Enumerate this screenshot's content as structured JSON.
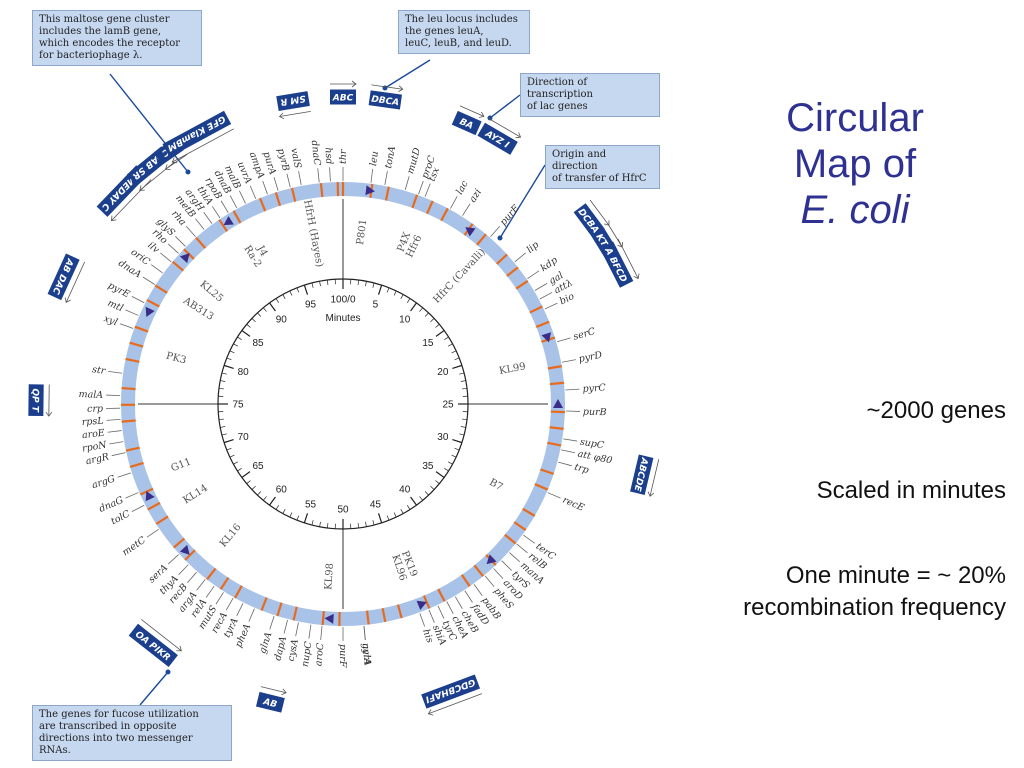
{
  "slide": {
    "title_line1": "Circular",
    "title_line2": "Map of",
    "title_line3": "E. coli",
    "stat_genes": "~2000 genes",
    "stat_scale": "Scaled in minutes",
    "stat_minute_line1": "One minute = ~ 20%",
    "stat_minute_line2": "recombination frequency"
  },
  "diagram": {
    "center_label": "Minutes",
    "minute_ticks": [
      "100/0",
      "5",
      "10",
      "15",
      "20",
      "25",
      "30",
      "35",
      "40",
      "45",
      "50",
      "55",
      "60",
      "65",
      "70",
      "75",
      "80",
      "85",
      "90",
      "95"
    ],
    "strains": [
      {
        "name": "HfrH (Hayes)",
        "min": 97
      },
      {
        "name": "P801",
        "min": 2
      },
      {
        "name": "P4X",
        "min": 6
      },
      {
        "name": "Hfr6",
        "min": 7
      },
      {
        "name": "HfrC (Cavalli)",
        "min": 12
      },
      {
        "name": "KL99",
        "min": 22
      },
      {
        "name": "B7",
        "min": 33
      },
      {
        "name": "PK19",
        "min": 44
      },
      {
        "name": "KL96",
        "min": 45
      },
      {
        "name": "KL98",
        "min": 51
      },
      {
        "name": "KL16",
        "min": 61
      },
      {
        "name": "KL14",
        "min": 66
      },
      {
        "name": "G11",
        "min": 69
      },
      {
        "name": "PK3",
        "min": 79
      },
      {
        "name": "AB313",
        "min": 84
      },
      {
        "name": "KL25",
        "min": 86
      },
      {
        "name": "Ra-2",
        "min": 91
      },
      {
        "name": "J4",
        "min": 92
      }
    ],
    "genes": [
      {
        "name": "thr",
        "min": 0
      },
      {
        "name": "leu",
        "min": 2
      },
      {
        "name": "tonA",
        "min": 3
      },
      {
        "name": "mutD",
        "min": 4.5
      },
      {
        "name": "proC",
        "min": 5.5
      },
      {
        "name": "tsx",
        "min": 6
      },
      {
        "name": "lac",
        "min": 8
      },
      {
        "name": "azi",
        "min": 9
      },
      {
        "name": "purE",
        "min": 11.5
      },
      {
        "name": "lip",
        "min": 14
      },
      {
        "name": "kdp",
        "min": 15.5
      },
      {
        "name": "gal",
        "min": 16.5
      },
      {
        "name": "attλ",
        "min": 17.2
      },
      {
        "name": "bio",
        "min": 18
      },
      {
        "name": "serC",
        "min": 20.5
      },
      {
        "name": "pyrD",
        "min": 22
      },
      {
        "name": "pyrC",
        "min": 24
      },
      {
        "name": "purB",
        "min": 25.5
      },
      {
        "name": "supC",
        "min": 27.5
      },
      {
        "name": "att φ80",
        "min": 28.3
      },
      {
        "name": "trp",
        "min": 29.2
      },
      {
        "name": "recE",
        "min": 31.5
      },
      {
        "name": "terC",
        "min": 35
      },
      {
        "name": "relB",
        "min": 35.8
      },
      {
        "name": "manA",
        "min": 36.6
      },
      {
        "name": "tyrS",
        "min": 37.4
      },
      {
        "name": "aroD",
        "min": 38.2
      },
      {
        "name": "pheS",
        "min": 39
      },
      {
        "name": "pabB",
        "min": 40
      },
      {
        "name": "fadD",
        "min": 40.8
      },
      {
        "name": "cheB",
        "min": 41.6
      },
      {
        "name": "cheA",
        "min": 42.3
      },
      {
        "name": "tyrC",
        "min": 43
      },
      {
        "name": "shiA",
        "min": 43.7
      },
      {
        "name": "his",
        "min": 44.4
      },
      {
        "name": "nalA",
        "min": 48.5
      },
      {
        "name": "gyrA",
        "min": 48.5
      },
      {
        "name": "purF",
        "min": 50
      },
      {
        "name": "aroC",
        "min": 51.5
      },
      {
        "name": "nupC",
        "min": 52.3
      },
      {
        "name": "cysA",
        "min": 53.2
      },
      {
        "name": "dapA",
        "min": 54
      },
      {
        "name": "glnA",
        "min": 55
      },
      {
        "name": "pheA",
        "min": 56.5
      },
      {
        "name": "tyrA",
        "min": 57.4
      },
      {
        "name": "recA",
        "min": 58.2
      },
      {
        "name": "mutS",
        "min": 59
      },
      {
        "name": "relA",
        "min": 59.8
      },
      {
        "name": "argA",
        "min": 60.6
      },
      {
        "name": "recB",
        "min": 61.4
      },
      {
        "name": "thyA",
        "min": 62.2
      },
      {
        "name": "serA",
        "min": 63.2
      },
      {
        "name": "metC",
        "min": 65.5
      },
      {
        "name": "tolC",
        "min": 67.5
      },
      {
        "name": "dnaG",
        "min": 68.5
      },
      {
        "name": "argG",
        "min": 70
      },
      {
        "name": "argR",
        "min": 71.5
      },
      {
        "name": "rpoN",
        "min": 72.3
      },
      {
        "name": "aroE",
        "min": 73.1
      },
      {
        "name": "rpsL",
        "min": 73.9
      },
      {
        "name": "crp",
        "min": 74.7
      },
      {
        "name": "malA",
        "min": 75.6
      },
      {
        "name": "str",
        "min": 77.2
      },
      {
        "name": "xyl",
        "min": 80.5
      },
      {
        "name": "mtl",
        "min": 81.5
      },
      {
        "name": "pyrE",
        "min": 82.5
      },
      {
        "name": "dnaA",
        "min": 84
      },
      {
        "name": "oriC",
        "min": 85
      },
      {
        "name": "ilv",
        "min": 86
      },
      {
        "name": "rho",
        "min": 86.8
      },
      {
        "name": "glyS",
        "min": 87.5
      },
      {
        "name": "rha",
        "min": 88.5
      },
      {
        "name": "metB",
        "min": 89.3
      },
      {
        "name": "argH",
        "min": 90
      },
      {
        "name": "thiA",
        "min": 90.7
      },
      {
        "name": "rpoB",
        "min": 91.4
      },
      {
        "name": "dnaB",
        "min": 92.1
      },
      {
        "name": "malB",
        "min": 92.8
      },
      {
        "name": "uvrA",
        "min": 93.6
      },
      {
        "name": "ampA",
        "min": 94.5
      },
      {
        "name": "purA",
        "min": 95.3
      },
      {
        "name": "pyrB",
        "min": 96.2
      },
      {
        "name": "valS",
        "min": 97
      },
      {
        "name": "dnaC",
        "min": 98.3
      },
      {
        "name": "hsd",
        "min": 99.1
      }
    ],
    "operons": [
      {
        "label": "SM R",
        "min": 97.4
      },
      {
        "label": "ABC",
        "min": 0
      },
      {
        "label": "DBCA",
        "min": 2.2
      },
      {
        "label": "BA",
        "min": 6.6
      },
      {
        "label": "AYZ I",
        "min": 8.4
      },
      {
        "label": "DCBA",
        "min": 14.8
      },
      {
        "label": "KTB",
        "min": 16.2
      },
      {
        "label": "A BFCD",
        "min": 17.5
      },
      {
        "label": "ABCDE",
        "min": 28.7
      },
      {
        "label": "GDCBHAFI",
        "min": 44.3
      },
      {
        "label": "AB",
        "min": 53.8
      },
      {
        "label": "OA PIKR",
        "min": 60.6
      },
      {
        "label": "QP T",
        "min": 75.2
      },
      {
        "label": "AB DAC",
        "min": 81.8
      },
      {
        "label": "GMEDAY C",
        "min": 87.2
      },
      {
        "label": "DAB SR",
        "min": 89.1
      },
      {
        "label": "BC",
        "min": 90.4
      },
      {
        "label": "GFE KlamBM",
        "min": 92.1
      }
    ],
    "colors": {
      "ring": "#a8c2e8",
      "tick": "#e86a1c",
      "arrow": "#3a2d8a",
      "operon_box": "#1b3f8c",
      "callout_bg": "#c6d7f0",
      "title": "#2e3192"
    }
  },
  "callouts": {
    "maltose_line1": "This maltose gene cluster",
    "maltose_line2": "includes the lamB gene,",
    "maltose_line3": "which encodes the receptor",
    "maltose_line4": "for bacteriophage λ.",
    "leu_line1": "The leu locus includes",
    "leu_line2": "the genes leuA,",
    "leu_line3": "leuC, leuB, and leuD.",
    "lac_line1": "Direction of transcription",
    "lac_line2": "of lac genes",
    "origin_line1": "Origin and direction",
    "origin_line2": "of transfer of HfrC",
    "fucose_line1": "The genes for fucose utilization",
    "fucose_line2": "are transcribed in opposite",
    "fucose_line3": "directions into two messenger RNAs."
  }
}
